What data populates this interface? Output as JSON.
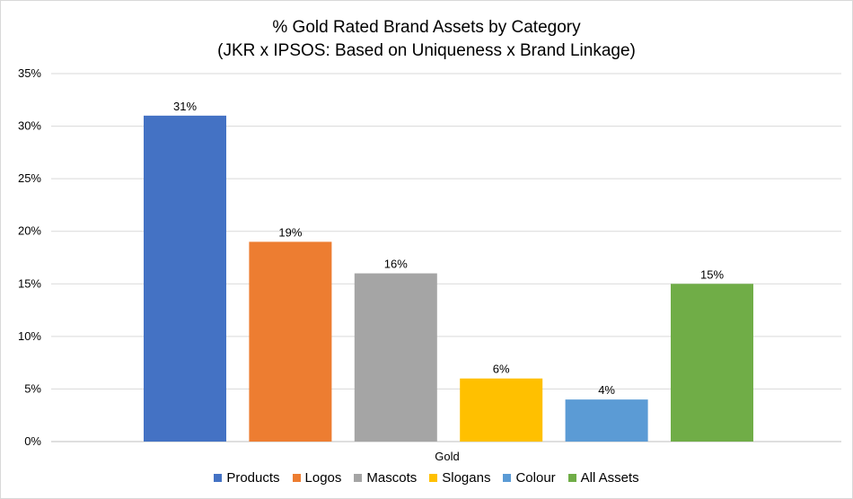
{
  "chart_data": {
    "type": "bar",
    "title": "% Gold Rated Brand Assets by Category",
    "subtitle": "(JKR x IPSOS: Based on Uniqueness x Brand Linkage)",
    "categories": [
      "Gold"
    ],
    "xlabel": "Gold",
    "ylabel": "",
    "ylim": [
      0,
      35
    ],
    "yticks": [
      "0%",
      "5%",
      "10%",
      "15%",
      "20%",
      "25%",
      "30%",
      "35%"
    ],
    "ytick_values": [
      0,
      5,
      10,
      15,
      20,
      25,
      30,
      35
    ],
    "grid": true,
    "legend_position": "bottom",
    "series": [
      {
        "name": "Products",
        "values": [
          31
        ],
        "label": "31%",
        "color": "#4472C4"
      },
      {
        "name": "Logos",
        "values": [
          19
        ],
        "label": "19%",
        "color": "#ED7D31"
      },
      {
        "name": "Mascots",
        "values": [
          16
        ],
        "label": "16%",
        "color": "#A5A5A5"
      },
      {
        "name": "Slogans",
        "values": [
          6
        ],
        "label": "6%",
        "color": "#FFC000"
      },
      {
        "name": "Colour",
        "values": [
          4
        ],
        "label": "4%",
        "color": "#5B9BD5"
      },
      {
        "name": "All Assets",
        "values": [
          15
        ],
        "label": "15%",
        "color": "#70AD47"
      }
    ]
  }
}
